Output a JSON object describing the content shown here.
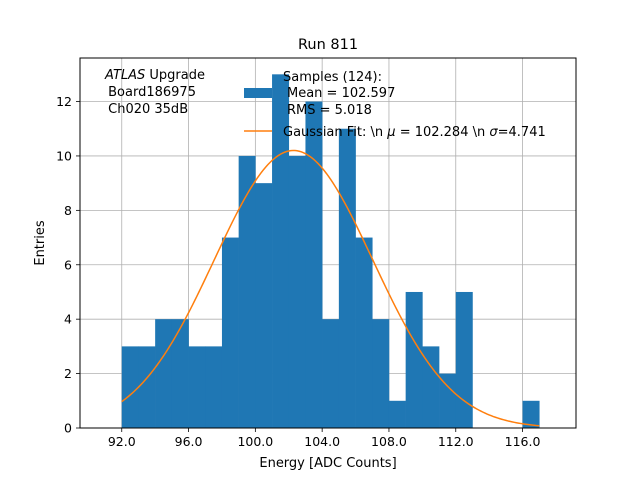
{
  "chart_data": {
    "type": "bar",
    "title": "Run 811",
    "xlabel": "Energy [ADC Counts]",
    "ylabel": "Entries",
    "xlim": [
      89.5,
      119.2
    ],
    "ylim": [
      0,
      13.6
    ],
    "grid": true,
    "xticks": [
      92,
      96,
      100,
      104,
      108,
      112,
      116
    ],
    "xtick_labels": [
      "92.0",
      "96.0",
      "100.0",
      "104.0",
      "108.0",
      "112.0",
      "116.0"
    ],
    "yticks": [
      0,
      2,
      4,
      6,
      8,
      10,
      12
    ],
    "ytick_labels": [
      "0",
      "2",
      "4",
      "6",
      "8",
      "10",
      "12"
    ],
    "histogram": {
      "name": "Samples (124):",
      "color": "#1f77b4",
      "bin_edges": [
        92,
        93,
        94,
        95,
        96,
        97,
        98,
        99,
        100,
        101,
        102,
        103,
        104,
        105,
        106,
        107,
        108,
        109,
        110,
        111,
        112,
        113,
        114,
        115,
        116,
        117
      ],
      "counts": [
        3,
        3,
        4,
        4,
        3,
        3,
        7,
        10,
        9,
        13,
        10,
        12,
        4,
        11,
        7,
        4,
        1,
        5,
        3,
        2,
        5,
        0,
        0,
        0,
        1
      ]
    },
    "fit": {
      "name": "Gaussian Fit: \\n $\\mu$ = 102.284 \\n $\\sigma$=4.741",
      "color": "#ff7f0e",
      "mu": 102.284,
      "sigma": 4.741,
      "amplitude": 10.2,
      "x_range": [
        92,
        117
      ]
    },
    "legend": {
      "placement": "top-right",
      "hist_lines": [
        "Samples (124):",
        "Mean = 102.597",
        "RMS = 5.018"
      ],
      "fit_label_prefix": "Gaussian Fit: \\n ",
      "fit_label_mu": "μ",
      "fit_label_mid": " = 102.284 \\n ",
      "fit_label_sigma": "σ",
      "fit_label_suffix": "=4.741"
    },
    "annotation": {
      "atlas": "ATLAS",
      "upgrade": " Upgrade",
      "line2": " Board186975",
      "line3": " Ch020 35dB"
    }
  }
}
